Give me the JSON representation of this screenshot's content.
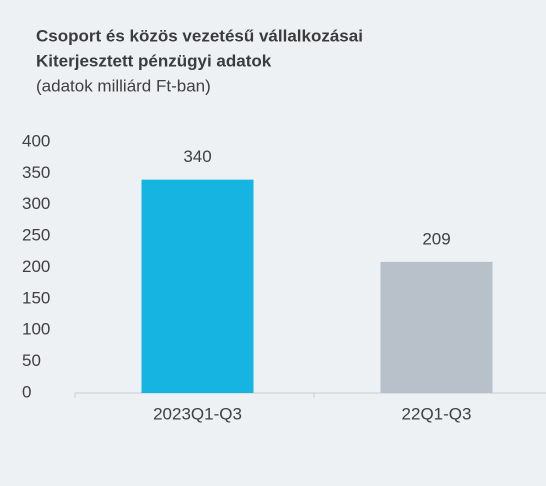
{
  "chart_data": {
    "type": "bar",
    "title": [
      "Csoport és közös vezetésű vállalkozásai",
      "Kiterjesztett pénzügyi adatok"
    ],
    "subtitle": "(adatok milliárd Ft-ban)",
    "categories": [
      "2023Q1-Q3",
      "22Q1-Q3"
    ],
    "values": [
      340,
      209
    ],
    "colors": [
      "#15b4e1",
      "#b8c0ca"
    ],
    "ylim": [
      0,
      400
    ],
    "yticks": [
      0,
      50,
      100,
      150,
      200,
      250,
      300,
      350,
      400
    ],
    "grid": false
  }
}
